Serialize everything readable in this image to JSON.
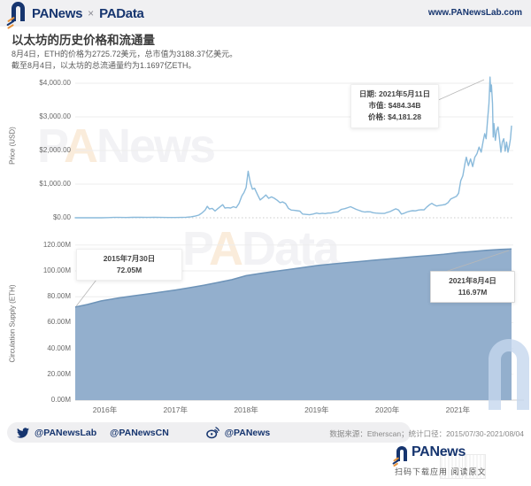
{
  "header": {
    "logo_primary": "PANews",
    "logo_separator": "×",
    "logo_secondary": "PAData",
    "website": "www.PANewsLab.com"
  },
  "title_section": {
    "title": "以太坊的历史价格和流通量",
    "subtitle_line1": "8月4日，ETH的价格为2725.72美元，总市值为3188.37亿美元。",
    "subtitle_line2": "截至8月4日，以太坊的总流通量约为1.1697亿ETH。"
  },
  "watermarks": {
    "price": {
      "part1": "P",
      "part2": "A",
      "part3": "News"
    },
    "supply": {
      "part1": "P",
      "part2": "A",
      "part3": "Data"
    }
  },
  "colors": {
    "brand_navy": "#16356f",
    "brand_orange": "#e8933a",
    "price_line": "#8abadb",
    "supply_fill": "#93afcd",
    "supply_edge": "#6d93b8",
    "grid": "#ededed"
  },
  "footer": {
    "twitter_handle1": "@PANewsLab",
    "twitter_handle2": "@PANewsCN",
    "weibo_handle": "@PANews",
    "data_source": "数据来源：Etherscan；统计口径：2015/07/30-2021/08/04"
  },
  "bottom": {
    "logo_text": "PANews",
    "caption": "扫码下载应用 阅读原文"
  },
  "chart_data": [
    {
      "type": "line",
      "name": "ETH historical price",
      "ylabel": "Price (USD)",
      "ylim": [
        0,
        4400
      ],
      "y_ticks": [
        "$4,000.00",
        "$3,000.00",
        "$2,000.00",
        "$1,000.00",
        "$0.00"
      ],
      "y_tick_values": [
        4000,
        3000,
        2000,
        1000,
        0
      ],
      "x_ticks": [
        "2016年",
        "2017年",
        "2018年",
        "2019年",
        "2020年",
        "2021年"
      ],
      "x_tick_years": [
        2016,
        2017,
        2018,
        2019,
        2020,
        2021
      ],
      "x_range_years": [
        2015.58,
        2021.76
      ],
      "grid": true,
      "annotation": {
        "line1": "日期: 2021年5月11日",
        "line2": "市值: $484.34B",
        "line3": "价格: $4,181.28"
      },
      "series": [
        {
          "name": "ETH price (USD)",
          "color": "#8abadb",
          "points": [
            [
              2015.58,
              1
            ],
            [
              2015.75,
              1
            ],
            [
              2015.95,
              1
            ],
            [
              2016.05,
              6
            ],
            [
              2016.12,
              10
            ],
            [
              2016.2,
              11
            ],
            [
              2016.3,
              9
            ],
            [
              2016.4,
              12
            ],
            [
              2016.5,
              13
            ],
            [
              2016.6,
              11
            ],
            [
              2016.7,
              12
            ],
            [
              2016.8,
              11
            ],
            [
              2016.9,
              8
            ],
            [
              2017.0,
              8
            ],
            [
              2017.08,
              11
            ],
            [
              2017.15,
              15
            ],
            [
              2017.22,
              30
            ],
            [
              2017.28,
              50
            ],
            [
              2017.33,
              80
            ],
            [
              2017.38,
              150
            ],
            [
              2017.42,
              230
            ],
            [
              2017.45,
              340
            ],
            [
              2017.48,
              260
            ],
            [
              2017.52,
              280
            ],
            [
              2017.56,
              200
            ],
            [
              2017.6,
              270
            ],
            [
              2017.64,
              340
            ],
            [
              2017.67,
              390
            ],
            [
              2017.7,
              290
            ],
            [
              2017.74,
              300
            ],
            [
              2017.78,
              290
            ],
            [
              2017.82,
              330
            ],
            [
              2017.86,
              300
            ],
            [
              2017.9,
              430
            ],
            [
              2017.94,
              650
            ],
            [
              2017.97,
              750
            ],
            [
              2018.0,
              900
            ],
            [
              2018.03,
              1385
            ],
            [
              2018.06,
              1050
            ],
            [
              2018.09,
              850
            ],
            [
              2018.12,
              880
            ],
            [
              2018.16,
              700
            ],
            [
              2018.2,
              530
            ],
            [
              2018.24,
              600
            ],
            [
              2018.28,
              680
            ],
            [
              2018.32,
              580
            ],
            [
              2018.36,
              620
            ],
            [
              2018.4,
              580
            ],
            [
              2018.44,
              520
            ],
            [
              2018.48,
              450
            ],
            [
              2018.52,
              470
            ],
            [
              2018.56,
              420
            ],
            [
              2018.6,
              280
            ],
            [
              2018.64,
              230
            ],
            [
              2018.68,
              220
            ],
            [
              2018.72,
              210
            ],
            [
              2018.76,
              200
            ],
            [
              2018.8,
              110
            ],
            [
              2018.85,
              100
            ],
            [
              2018.9,
              90
            ],
            [
              2018.95,
              110
            ],
            [
              2019.0,
              140
            ],
            [
              2019.04,
              120
            ],
            [
              2019.08,
              135
            ],
            [
              2019.12,
              125
            ],
            [
              2019.16,
              140
            ],
            [
              2019.2,
              140
            ],
            [
              2019.25,
              165
            ],
            [
              2019.3,
              175
            ],
            [
              2019.35,
              250
            ],
            [
              2019.4,
              270
            ],
            [
              2019.44,
              300
            ],
            [
              2019.48,
              330
            ],
            [
              2019.52,
              290
            ],
            [
              2019.56,
              250
            ],
            [
              2019.6,
              220
            ],
            [
              2019.64,
              190
            ],
            [
              2019.68,
              170
            ],
            [
              2019.72,
              180
            ],
            [
              2019.76,
              175
            ],
            [
              2019.8,
              150
            ],
            [
              2019.84,
              140
            ],
            [
              2019.88,
              135
            ],
            [
              2019.92,
              130
            ],
            [
              2019.96,
              130
            ],
            [
              2020.0,
              160
            ],
            [
              2020.04,
              185
            ],
            [
              2020.08,
              225
            ],
            [
              2020.12,
              265
            ],
            [
              2020.16,
              230
            ],
            [
              2020.2,
              110
            ],
            [
              2020.24,
              135
            ],
            [
              2020.28,
              170
            ],
            [
              2020.32,
              195
            ],
            [
              2020.36,
              210
            ],
            [
              2020.4,
              205
            ],
            [
              2020.44,
              230
            ],
            [
              2020.48,
              240
            ],
            [
              2020.52,
              235
            ],
            [
              2020.56,
              320
            ],
            [
              2020.6,
              390
            ],
            [
              2020.63,
              430
            ],
            [
              2020.66,
              390
            ],
            [
              2020.7,
              350
            ],
            [
              2020.74,
              365
            ],
            [
              2020.78,
              380
            ],
            [
              2020.82,
              395
            ],
            [
              2020.86,
              450
            ],
            [
              2020.9,
              560
            ],
            [
              2020.94,
              600
            ],
            [
              2020.98,
              640
            ],
            [
              2021.01,
              730
            ],
            [
              2021.04,
              1100
            ],
            [
              2021.07,
              1250
            ],
            [
              2021.1,
              1600
            ],
            [
              2021.12,
              1800
            ],
            [
              2021.15,
              1550
            ],
            [
              2021.18,
              1750
            ],
            [
              2021.21,
              1520
            ],
            [
              2021.24,
              1800
            ],
            [
              2021.27,
              1900
            ],
            [
              2021.3,
              2100
            ],
            [
              2021.33,
              1950
            ],
            [
              2021.36,
              2300
            ],
            [
              2021.38,
              2500
            ],
            [
              2021.4,
              2350
            ],
            [
              2021.42,
              2900
            ],
            [
              2021.44,
              3400
            ],
            [
              2021.45,
              3900
            ],
            [
              2021.455,
              4181.28
            ],
            [
              2021.465,
              3750
            ],
            [
              2021.475,
              3950
            ],
            [
              2021.49,
              3400
            ],
            [
              2021.5,
              2400
            ],
            [
              2021.51,
              2800
            ],
            [
              2021.53,
              2300
            ],
            [
              2021.55,
              2600
            ],
            [
              2021.57,
              2700
            ],
            [
              2021.59,
              2350
            ],
            [
              2021.61,
              1950
            ],
            [
              2021.63,
              2250
            ],
            [
              2021.65,
              2350
            ],
            [
              2021.67,
              1980
            ],
            [
              2021.69,
              2250
            ],
            [
              2021.71,
              1950
            ],
            [
              2021.73,
              2150
            ],
            [
              2021.745,
              2350
            ],
            [
              2021.76,
              2725.72
            ]
          ]
        }
      ]
    },
    {
      "type": "area",
      "name": "ETH circulation supply",
      "ylabel": "Circulation Supply (ETH)",
      "ylim": [
        0,
        130
      ],
      "y_ticks": [
        "120.00M",
        "100.00M",
        "80.00M",
        "60.00M",
        "40.00M",
        "20.00M",
        "0.00M"
      ],
      "y_tick_values": [
        120,
        100,
        80,
        60,
        40,
        20,
        0
      ],
      "x_range_years": [
        2015.58,
        2021.76
      ],
      "grid": true,
      "annotations": {
        "start": {
          "line1": "2015年7月30日",
          "line2": "72.05M"
        },
        "end": {
          "line1": "2021年8月4日",
          "line2": "116.97M"
        }
      },
      "series": [
        {
          "name": "Circulation supply (million ETH)",
          "color": "#93afcd",
          "edge_color": "#6d93b8",
          "points": [
            [
              2015.58,
              72.05
            ],
            [
              2015.75,
              74.0
            ],
            [
              2015.95,
              76.8
            ],
            [
              2016.2,
              79.1
            ],
            [
              2016.4,
              80.6
            ],
            [
              2016.6,
              82.1
            ],
            [
              2016.8,
              83.6
            ],
            [
              2017.0,
              85.2
            ],
            [
              2017.2,
              87.0
            ],
            [
              2017.4,
              88.9
            ],
            [
              2017.6,
              91.0
            ],
            [
              2017.8,
              93.2
            ],
            [
              2018.0,
              96.3
            ],
            [
              2018.2,
              98.0
            ],
            [
              2018.4,
              99.6
            ],
            [
              2018.6,
              101.0
            ],
            [
              2018.8,
              102.6
            ],
            [
              2019.0,
              104.1
            ],
            [
              2019.2,
              105.2
            ],
            [
              2019.4,
              106.2
            ],
            [
              2019.6,
              107.2
            ],
            [
              2019.8,
              108.2
            ],
            [
              2020.0,
              109.2
            ],
            [
              2020.2,
              110.1
            ],
            [
              2020.4,
              111.0
            ],
            [
              2020.6,
              111.9
            ],
            [
              2020.8,
              112.9
            ],
            [
              2021.0,
              114.1
            ],
            [
              2021.2,
              115.0
            ],
            [
              2021.4,
              115.9
            ],
            [
              2021.6,
              116.6
            ],
            [
              2021.76,
              116.97
            ]
          ]
        }
      ]
    }
  ]
}
